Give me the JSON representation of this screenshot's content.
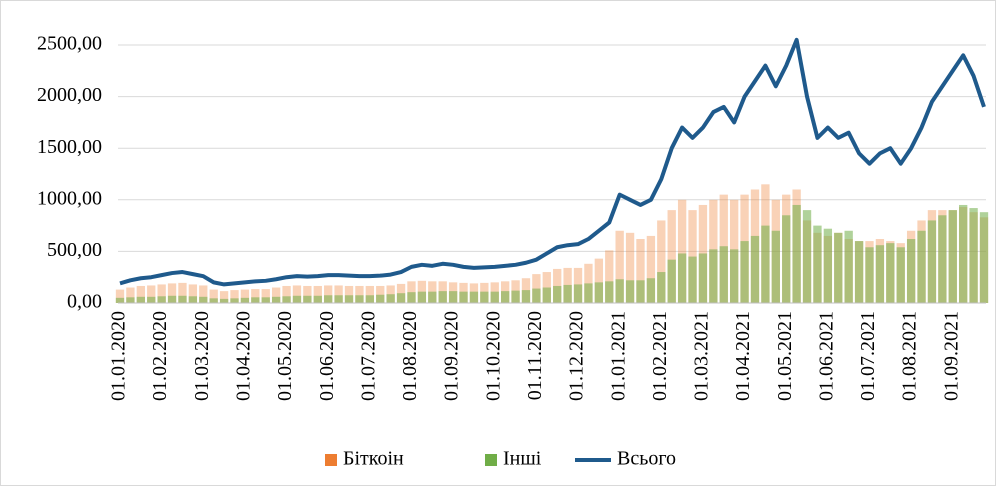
{
  "chart_data": {
    "type": "bar-line",
    "categories": [
      "01.01.2020",
      null,
      null,
      null,
      "01.02.2020",
      null,
      null,
      null,
      "01.03.2020",
      null,
      null,
      null,
      "01.04.2020",
      null,
      null,
      null,
      "01.05.2020",
      null,
      null,
      null,
      "01.06.2020",
      null,
      null,
      null,
      "01.07.2020",
      null,
      null,
      null,
      "01.08.2020",
      null,
      null,
      null,
      "01.09.2020",
      null,
      null,
      null,
      "01.10.2020",
      null,
      null,
      null,
      "01.11.2020",
      null,
      null,
      null,
      "01.12.2020",
      null,
      null,
      null,
      "01.01.2021",
      null,
      null,
      null,
      "01.02.2021",
      null,
      null,
      null,
      "01.03.2021",
      null,
      null,
      null,
      "01.04.2021",
      null,
      null,
      null,
      "01.05.2021",
      null,
      null,
      null,
      "01.06.2021",
      null,
      null,
      null,
      "01.07.2021",
      null,
      null,
      null,
      "01.08.2021",
      null,
      null,
      null,
      "01.09.2021",
      null,
      null,
      null
    ],
    "series": [
      {
        "name": "Біткоін",
        "color": "#ed7d31",
        "kind": "bar",
        "values": [
          130,
          150,
          165,
          170,
          180,
          190,
          195,
          180,
          170,
          130,
          115,
          125,
          130,
          135,
          135,
          150,
          165,
          170,
          165,
          165,
          170,
          170,
          165,
          165,
          165,
          165,
          170,
          185,
          210,
          215,
          210,
          210,
          200,
          195,
          190,
          195,
          200,
          210,
          220,
          240,
          280,
          300,
          330,
          340,
          340,
          380,
          430,
          510,
          700,
          680,
          620,
          650,
          800,
          900,
          1000,
          900,
          950,
          1000,
          1050,
          1000,
          1050,
          1100,
          1150,
          1000,
          1050,
          1100,
          800,
          680,
          650,
          680,
          620,
          600,
          600,
          620,
          600,
          580,
          700,
          800,
          900,
          900,
          900,
          930,
          880,
          830
        ]
      },
      {
        "name": "Інші",
        "color": "#70ad47",
        "kind": "bar",
        "values": [
          50,
          55,
          60,
          60,
          65,
          70,
          70,
          65,
          60,
          45,
          40,
          45,
          50,
          55,
          55,
          60,
          65,
          70,
          70,
          70,
          75,
          75,
          75,
          75,
          75,
          80,
          85,
          95,
          105,
          110,
          110,
          115,
          115,
          110,
          110,
          110,
          110,
          115,
          120,
          125,
          140,
          150,
          165,
          175,
          180,
          190,
          200,
          210,
          230,
          220,
          220,
          240,
          300,
          420,
          480,
          450,
          480,
          520,
          550,
          520,
          600,
          650,
          750,
          700,
          850,
          950,
          900,
          750,
          720,
          680,
          700,
          600,
          540,
          560,
          580,
          540,
          620,
          700,
          800,
          850,
          900,
          950,
          920,
          880
        ]
      },
      {
        "name": "Всього",
        "color": "#1f5a8c",
        "kind": "line",
        "values": [
          190,
          220,
          240,
          250,
          270,
          290,
          300,
          280,
          260,
          200,
          180,
          190,
          200,
          210,
          215,
          230,
          250,
          260,
          255,
          260,
          270,
          270,
          265,
          260,
          260,
          265,
          275,
          300,
          350,
          370,
          360,
          380,
          370,
          350,
          340,
          345,
          350,
          360,
          370,
          390,
          420,
          480,
          540,
          560,
          570,
          620,
          700,
          780,
          1050,
          1000,
          950,
          1000,
          1200,
          1500,
          1700,
          1600,
          1700,
          1850,
          1900,
          1750,
          2000,
          2150,
          2300,
          2100,
          2300,
          2550,
          2000,
          1600,
          1700,
          1600,
          1650,
          1450,
          1350,
          1450,
          1500,
          1350,
          1500,
          1700,
          1950,
          2100,
          2250,
          2400,
          2200,
          1900
        ]
      }
    ],
    "ylim": [
      0,
      2500
    ],
    "yticks": [
      {
        "value": 0,
        "label": "0,00"
      },
      {
        "value": 500,
        "label": "500,00"
      },
      {
        "value": 1000,
        "label": "1000,00"
      },
      {
        "value": 1500,
        "label": "1500,00"
      },
      {
        "value": 2000,
        "label": "2000,00"
      },
      {
        "value": 2500,
        "label": "2500,00"
      }
    ],
    "grid": true,
    "legend": "bottom"
  }
}
